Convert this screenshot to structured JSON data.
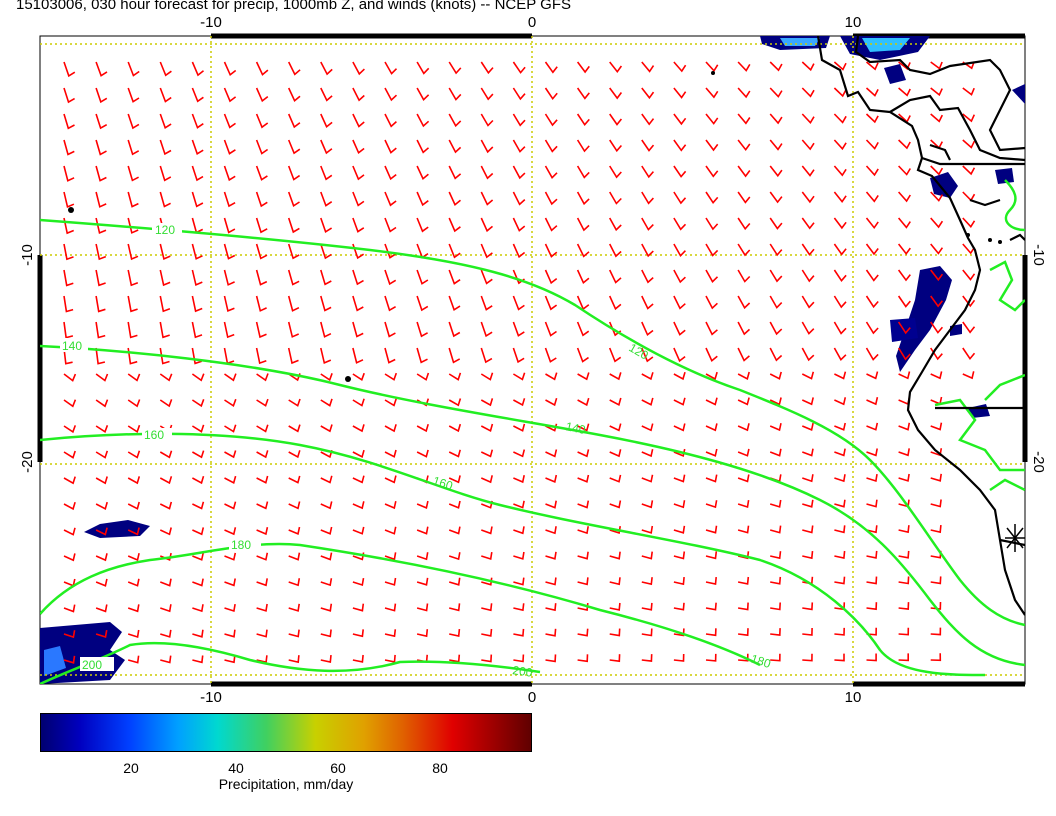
{
  "title": "15103006, 030 hour forecast for precip, 1000mb Z, and winds (knots) -- NCEP GFS",
  "map": {
    "lon_ticks": [
      "-10",
      "0",
      "10"
    ],
    "lat_ticks": [
      "-10",
      "-20"
    ],
    "contour_labels": [
      "120",
      "140",
      "160",
      "180",
      "200",
      "120",
      "140",
      "160",
      "180",
      "200"
    ],
    "colors": {
      "wind_barbs": "#ff0000",
      "contours": "#22ee22",
      "grid": "#cccc00",
      "coastline": "#000000",
      "precip_low": "#000080"
    }
  },
  "colorbar": {
    "ticks": [
      "20",
      "40",
      "60",
      "80"
    ],
    "label": "Precipitation, mm/day"
  }
}
